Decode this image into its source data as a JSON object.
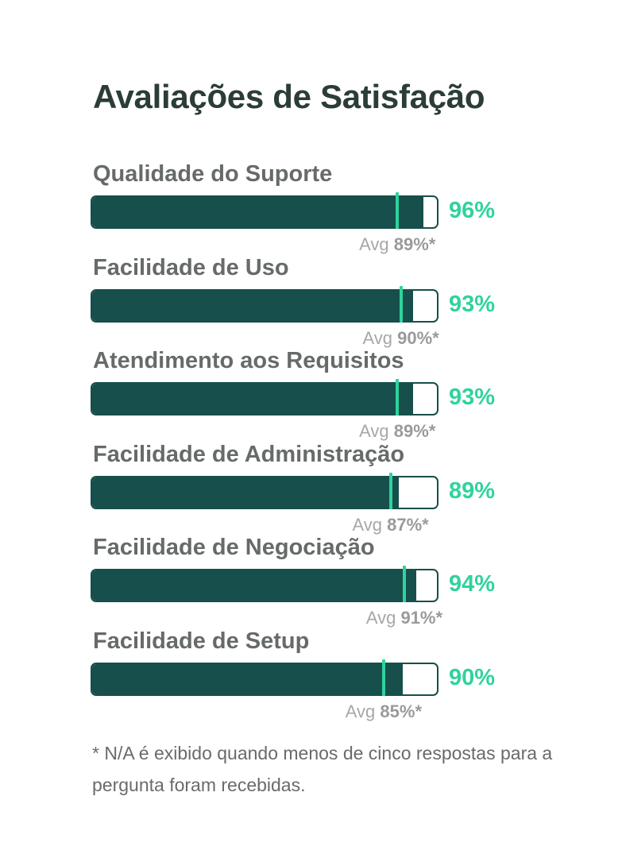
{
  "title": "Avaliações de Satisfação",
  "chart_data": {
    "type": "bar",
    "orientation": "horizontal",
    "title": "Avaliações de Satisfação",
    "xlim": [
      0,
      100
    ],
    "unit": "%",
    "categories": [
      "Qualidade do Suporte",
      "Facilidade de Uso",
      "Atendimento aos Requisitos",
      "Facilidade de Administração",
      "Facilidade de Negociação",
      "Facilidade de Setup"
    ],
    "values": [
      96,
      93,
      93,
      89,
      94,
      90
    ],
    "value_labels": [
      "96%",
      "93%",
      "93%",
      "89%",
      "94%",
      "90%"
    ],
    "averages": [
      89,
      90,
      89,
      87,
      91,
      85
    ],
    "average_prefix": "Avg",
    "average_labels": [
      "89%*",
      "90%*",
      "89%*",
      "87%*",
      "91%*",
      "85%*"
    ],
    "colors": {
      "bar": "#164f4b",
      "value": "#2fd39d",
      "average_marker": "#2fd39d"
    }
  },
  "footnote": "* N/A é exibido quando menos de cinco respostas para a pergunta foram recebidas."
}
